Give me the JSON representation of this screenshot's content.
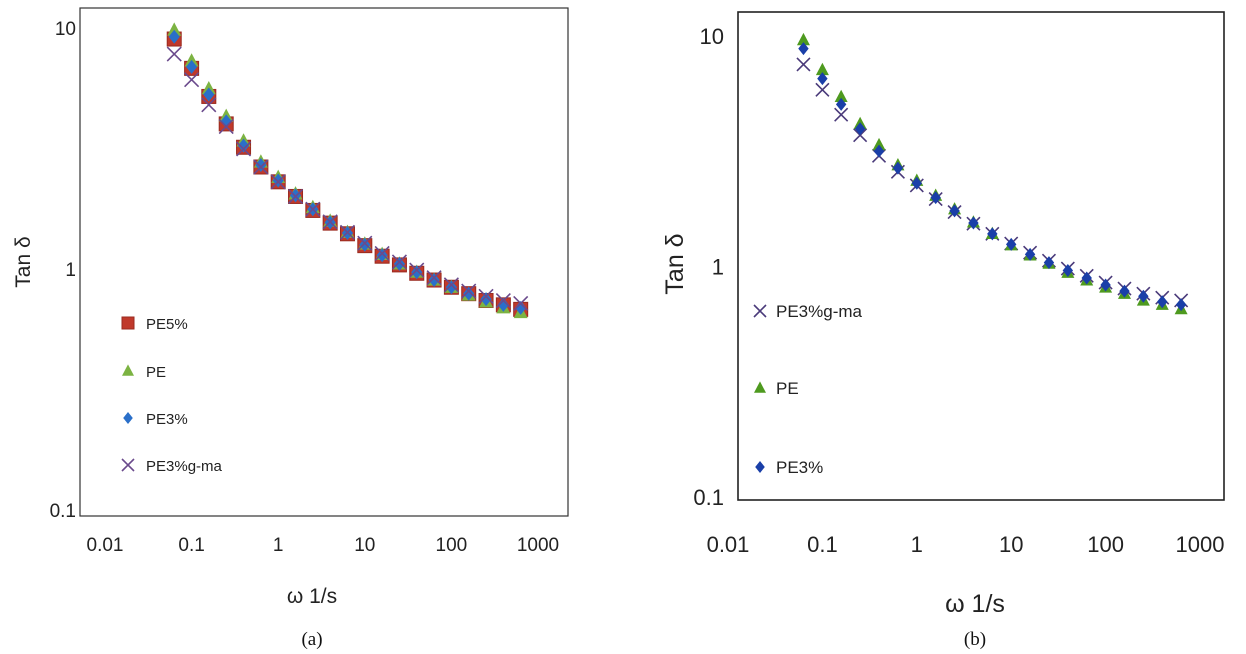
{
  "chart_data": [
    {
      "type": "scatter",
      "panel_label": "(a)",
      "xlabel": "ω 1/s",
      "ylabel": "Tan δ",
      "x_scale": "log",
      "y_scale": "log",
      "xlim": [
        0.01,
        1000
      ],
      "ylim": [
        0.1,
        10
      ],
      "x_ticks": [
        "0.01",
        "0.1",
        "1",
        "10",
        "100",
        "1000"
      ],
      "y_ticks": [
        "0.1",
        "1",
        "10"
      ],
      "grid": false,
      "legend": "left",
      "x": [
        0.063,
        0.1,
        0.158,
        0.251,
        0.398,
        0.631,
        1.0,
        1.585,
        2.512,
        3.981,
        6.31,
        10.0,
        15.85,
        25.12,
        39.81,
        63.1,
        100,
        158.5,
        251.2,
        398.1,
        631
      ],
      "series": [
        {
          "name": "PE5%",
          "marker": "square",
          "color": "#c0392b",
          "values": [
            9.0,
            6.8,
            5.2,
            4.0,
            3.2,
            2.65,
            2.3,
            2.0,
            1.75,
            1.55,
            1.4,
            1.25,
            1.13,
            1.04,
            0.96,
            0.9,
            0.84,
            0.79,
            0.74,
            0.71,
            0.68
          ]
        },
        {
          "name": "PE",
          "marker": "triangle",
          "color": "#7cb342",
          "values": [
            9.8,
            7.3,
            5.6,
            4.3,
            3.4,
            2.78,
            2.4,
            2.05,
            1.8,
            1.58,
            1.42,
            1.27,
            1.15,
            1.05,
            0.97,
            0.9,
            0.84,
            0.78,
            0.73,
            0.69,
            0.66
          ]
        },
        {
          "name": "PE3%",
          "marker": "diamond",
          "color": "#2a6fc9",
          "values": [
            9.2,
            6.9,
            5.3,
            4.1,
            3.25,
            2.7,
            2.33,
            2.02,
            1.77,
            1.56,
            1.41,
            1.26,
            1.14,
            1.05,
            0.97,
            0.9,
            0.84,
            0.79,
            0.75,
            0.71,
            0.69
          ]
        },
        {
          "name": "PE3%g-ma",
          "marker": "x",
          "color": "#6a4a8c",
          "values": [
            7.8,
            6.1,
            4.8,
            3.9,
            3.15,
            2.65,
            2.3,
            2.0,
            1.77,
            1.57,
            1.42,
            1.28,
            1.16,
            1.07,
            0.99,
            0.92,
            0.86,
            0.81,
            0.77,
            0.74,
            0.72
          ]
        }
      ]
    },
    {
      "type": "scatter",
      "panel_label": "(b)",
      "xlabel": "ω 1/s",
      "ylabel": "Tan δ",
      "x_scale": "log",
      "y_scale": "log",
      "xlim": [
        0.01,
        1000
      ],
      "ylim": [
        0.1,
        10
      ],
      "x_ticks": [
        "0.01",
        "0.1",
        "1",
        "10",
        "100",
        "1000"
      ],
      "y_ticks": [
        "0.1",
        "1",
        "10"
      ],
      "grid": false,
      "legend": "left",
      "x": [
        0.063,
        0.1,
        0.158,
        0.251,
        0.398,
        0.631,
        1.0,
        1.585,
        2.512,
        3.981,
        6.31,
        10.0,
        15.85,
        25.12,
        39.81,
        63.1,
        100,
        158.5,
        251.2,
        398.1,
        631
      ],
      "series": [
        {
          "name": "PE3%g-ma",
          "marker": "x",
          "color": "#4a3a7a",
          "values": [
            7.6,
            5.9,
            4.6,
            3.75,
            3.05,
            2.6,
            2.27,
            1.98,
            1.74,
            1.55,
            1.4,
            1.27,
            1.16,
            1.07,
            0.99,
            0.92,
            0.86,
            0.81,
            0.77,
            0.74,
            0.72
          ]
        },
        {
          "name": "PE",
          "marker": "triangle",
          "color": "#4e9a1f",
          "values": [
            9.7,
            7.2,
            5.5,
            4.2,
            3.4,
            2.78,
            2.38,
            2.05,
            1.79,
            1.57,
            1.4,
            1.25,
            1.13,
            1.04,
            0.95,
            0.88,
            0.82,
            0.77,
            0.72,
            0.69,
            0.66
          ]
        },
        {
          "name": "PE3%",
          "marker": "diamond",
          "color": "#1a3fa8",
          "values": [
            8.9,
            6.6,
            5.1,
            4.0,
            3.2,
            2.7,
            2.32,
            2.01,
            1.76,
            1.56,
            1.4,
            1.26,
            1.14,
            1.05,
            0.97,
            0.9,
            0.84,
            0.79,
            0.75,
            0.71,
            0.69
          ]
        }
      ]
    }
  ]
}
